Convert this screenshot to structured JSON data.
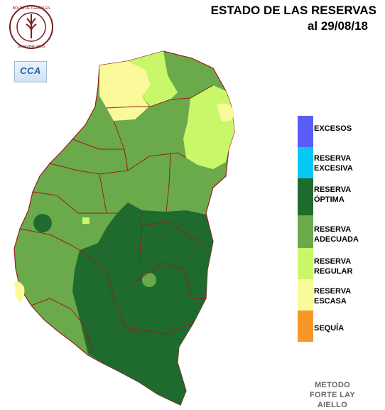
{
  "header": {
    "title_line1": "ESTADO DE LAS RESERVAS",
    "title_line2": "al 29/08/18"
  },
  "logos": {
    "bolsa_text": "BOLSA DE CEREALES DE ENTRE RIOS",
    "cca_label": "CCA"
  },
  "legend": [
    {
      "line1": "EXCESOS",
      "line2": "",
      "color": "#5b5bf5"
    },
    {
      "line1": "RESERVA",
      "line2": "EXCESIVA",
      "color": "#08c8f5"
    },
    {
      "line1": "RESERVA",
      "line2": "ÓPTIMA",
      "color": "#1f6a2e"
    },
    {
      "line1": "RESERVA",
      "line2": "ADECUADA",
      "color": "#6aaa4a"
    },
    {
      "line1": "RESERVA",
      "line2": "REGULAR",
      "color": "#c8f86a"
    },
    {
      "line1": "RESERVA",
      "line2": "ESCASA",
      "color": "#fafa9a"
    },
    {
      "line1": "SEQUÍA",
      "line2": "",
      "color": "#f9962a"
    }
  ],
  "method": {
    "line1": "METODO",
    "line2": "FORTE LAY",
    "line3": "AIELLO"
  }
}
